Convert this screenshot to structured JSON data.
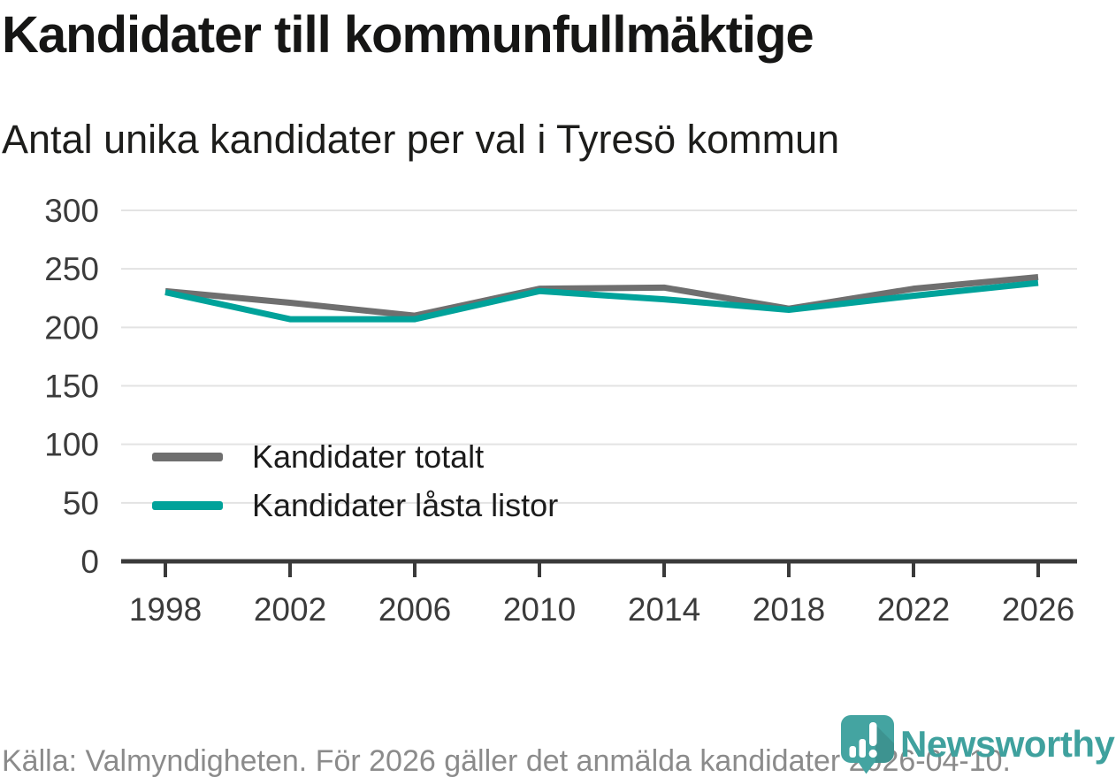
{
  "title": "Kandidater till kommunfullmäktige",
  "subtitle": "Antal unika kandidater per val i Tyresö kommun",
  "footer": {
    "source": "Källa: Valmyndigheten. För 2026 gäller det anmälda kandidater 2026-04-10."
  },
  "branding": {
    "name": "Newsworthy",
    "icon": "speech-bubble-bar-chart-icon",
    "icon_color": "#44a4a1",
    "wordmark_color": "#3fa19e"
  },
  "colors": {
    "title_text": "#161615",
    "axis_text": "#3b3b3b",
    "axis_line": "#3a3a3a",
    "gridline": "#e3e3e3",
    "series_total": "#6f6f6f",
    "series_locked": "#00a29a",
    "footer_text": "#8b8b8b"
  },
  "chart_data": {
    "type": "line",
    "title": "Kandidater till kommunfullmäktige",
    "subtitle": "Antal unika kandidater per val i Tyresö kommun",
    "x": [
      1998,
      2002,
      2006,
      2010,
      2014,
      2018,
      2022,
      2026
    ],
    "series": [
      {
        "name": "Kandidater totalt",
        "color": "#6f6f6f",
        "values": [
          231,
          221,
          210,
          233,
          234,
          216,
          233,
          243
        ]
      },
      {
        "name": "Kandidater låsta listor",
        "color": "#00a29a",
        "values": [
          230,
          207,
          207,
          231,
          224,
          215,
          227,
          238
        ]
      }
    ],
    "xlabel": "",
    "ylabel": "",
    "ylim": [
      0,
      300
    ],
    "yticks": [
      0,
      50,
      100,
      150,
      200,
      250,
      300
    ],
    "grid": "horizontal",
    "legend_position": "inside-left"
  }
}
